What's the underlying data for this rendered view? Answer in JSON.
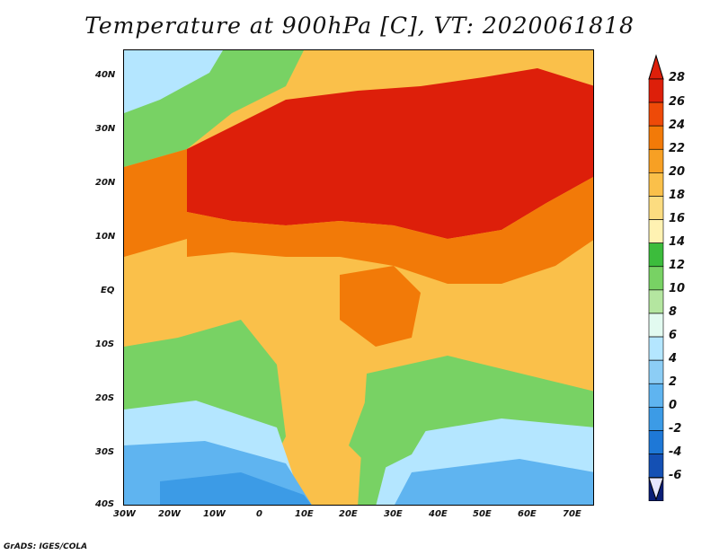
{
  "title": "Temperature at 900hPa [C], VT: 2020061818",
  "credit": "GrADS: IGES/COLA",
  "map": {
    "lat_labels": [
      "40N",
      "30N",
      "20N",
      "10N",
      "EQ",
      "10S",
      "20S",
      "30S",
      "40S"
    ],
    "lon_labels": [
      "30W",
      "20W",
      "10W",
      "0",
      "10E",
      "20E",
      "30E",
      "40E",
      "50E",
      "60E",
      "70E"
    ]
  },
  "colorbar": {
    "labels": [
      "28",
      "26",
      "24",
      "22",
      "20",
      "18",
      "16",
      "14",
      "12",
      "10",
      "8",
      "6",
      "4",
      "2",
      "0",
      "-2",
      "-4",
      "-6"
    ],
    "colors": [
      "#dd1f0a",
      "#ee4a08",
      "#f27a08",
      "#f7a024",
      "#fac04a",
      "#fcdc80",
      "#fff2b2",
      "#3cbc3c",
      "#78d264",
      "#b4e6a0",
      "#e2faf0",
      "#b4e6ff",
      "#8ccdf5",
      "#5fb4f0",
      "#3c9be6",
      "#1e78d7",
      "#1450b4",
      "#0a1e78"
    ]
  },
  "regions": {
    "hot_desert": "#dd1f0a",
    "warm": "#f27a08",
    "mild": "#fac04a",
    "cool_land": "#78d264",
    "sea_cool": "#b4e6ff",
    "sea_cold": "#5fb4f0",
    "sea_coldest": "#3c9be6"
  }
}
